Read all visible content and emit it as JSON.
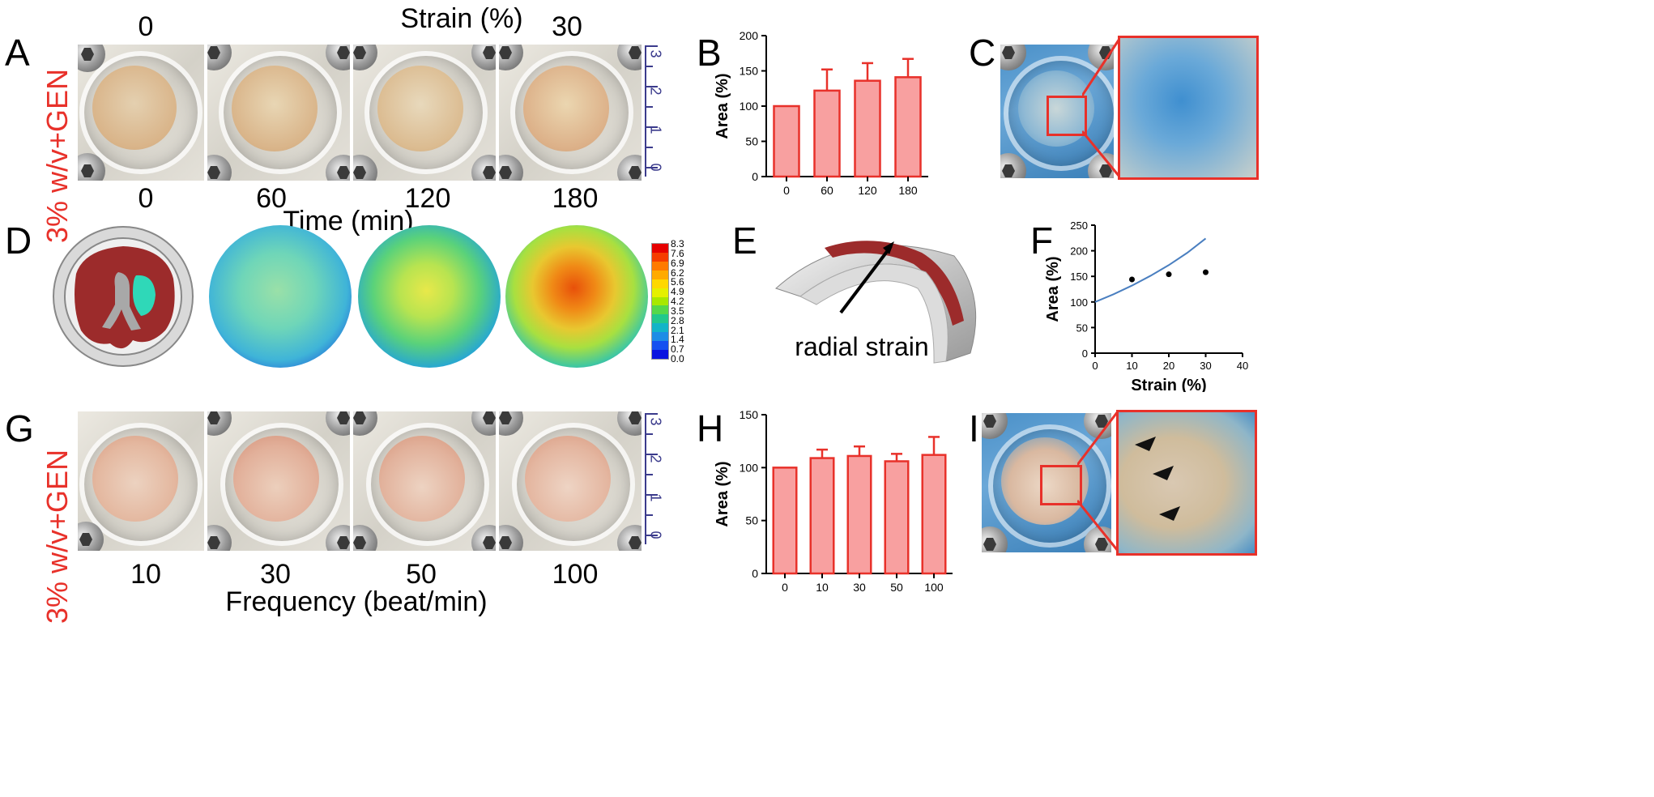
{
  "panels": {
    "A": "A",
    "B": "B",
    "C": "C",
    "D": "D",
    "E": "E",
    "F": "F",
    "G": "G",
    "H": "H",
    "I": "I"
  },
  "row1": {
    "strain_title": "Strain (%)",
    "strain_left": "0",
    "strain_right": "30",
    "side_label": "3% w/v+GEN",
    "time_ticks": [
      "0",
      "60",
      "120",
      "180"
    ],
    "time_axis": "Time (min)",
    "ruler_numbers": [
      "0",
      "1",
      "2",
      "3"
    ]
  },
  "row3": {
    "side_label": "3% w/v+GEN",
    "freq_ticks": [
      "10",
      "30",
      "50",
      "100"
    ],
    "freq_axis": "Frequency (beat/min)",
    "ruler_numbers": [
      "0",
      "1",
      "2",
      "3"
    ]
  },
  "colorbar": {
    "labels": [
      "8.3",
      "7.6",
      "6.9",
      "6.2",
      "5.6",
      "4.9",
      "4.2",
      "3.5",
      "2.8",
      "2.1",
      "1.4",
      "0.7",
      "0.0"
    ],
    "colors": [
      "#e60000",
      "#f53c00",
      "#ff7a00",
      "#ffaa00",
      "#ffd800",
      "#e5f000",
      "#a8e800",
      "#55d84a",
      "#22c88c",
      "#12b4c8",
      "#1d8ce6",
      "#1450f0",
      "#0a14e0"
    ]
  },
  "panel_E": {
    "annotation": "radial strain"
  },
  "chart_data": [
    {
      "id": "B",
      "type": "bar",
      "categories": [
        "0",
        "60",
        "120",
        "180"
      ],
      "values": [
        100,
        122,
        136,
        141
      ],
      "errors": [
        0,
        30,
        25,
        26
      ],
      "ylabel": "Area (%)",
      "xlabel": "",
      "ylim": [
        0,
        200
      ],
      "yticks": [
        "0",
        "50",
        "100",
        "150",
        "200"
      ],
      "bar_color": "#f8a0a0",
      "edge_color": "#e8312a"
    },
    {
      "id": "F",
      "type": "scatter",
      "x": [
        10,
        20,
        30
      ],
      "y": [
        144,
        154,
        158
      ],
      "line": {
        "x": [
          0,
          5,
          10,
          15,
          20,
          25,
          30
        ],
        "y": [
          100,
          115,
          132,
          151,
          172,
          196,
          224
        ],
        "color": "#4a7fc0"
      },
      "xlabel": "Strain (%)",
      "ylabel": "Area (%)",
      "xlim": [
        0,
        40
      ],
      "ylim": [
        0,
        250
      ],
      "xticks": [
        "0",
        "10",
        "20",
        "30",
        "40"
      ],
      "yticks": [
        "0",
        "50",
        "100",
        "150",
        "200",
        "250"
      ]
    },
    {
      "id": "H",
      "type": "bar",
      "categories": [
        "0",
        "10",
        "30",
        "50",
        "100"
      ],
      "values": [
        100,
        109,
        111,
        106,
        112
      ],
      "errors": [
        0,
        8,
        9,
        7,
        17
      ],
      "ylabel": "Area (%)",
      "xlabel": "",
      "ylim": [
        0,
        150
      ],
      "yticks": [
        "0",
        "50",
        "100",
        "150"
      ],
      "bar_color": "#f8a0a0",
      "edge_color": "#e8312a"
    }
  ]
}
